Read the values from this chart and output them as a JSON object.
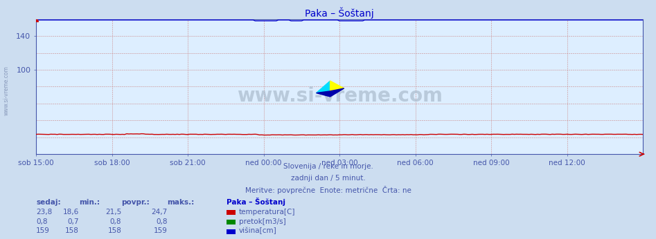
{
  "title": "Paka – Šoštanj",
  "title_color": "#0000cc",
  "bg_color": "#ccddf0",
  "plot_bg_color": "#ddeeff",
  "n_points": 289,
  "ylim": [
    0,
    160
  ],
  "yticks": [
    100,
    140
  ],
  "yticklabels": [
    "100",
    "140"
  ],
  "ylabel_color": "#4455aa",
  "xticklabels": [
    "sob 15:00",
    "sob 18:00",
    "sob 21:00",
    "ned 00:00",
    "ned 03:00",
    "ned 06:00",
    "ned 09:00",
    "ned 12:00"
  ],
  "xtick_color": "#4455aa",
  "temp_color": "#cc0000",
  "height_color": "#0000cc",
  "subtitle1": "Slovenija / reke in morje.",
  "subtitle2": "zadnji dan / 5 minut.",
  "subtitle3": "Meritve: povprečne  Enote: metrične  Črta: ne",
  "subtitle_color": "#4455aa",
  "watermark": "www.si-vreme.com",
  "watermark_color": "#aabbcc",
  "legend_title": "Paka – Šoštanj",
  "legend_color": "#0000cc",
  "table_header": [
    "sedaj:",
    "min.:",
    "povpr.:",
    "maks.:"
  ],
  "table_header_color": "#4455aa",
  "table_data": [
    [
      "23,8",
      "18,6",
      "21,5",
      "24,7"
    ],
    [
      "0,8",
      "0,7",
      "0,8",
      "0,8"
    ],
    [
      "159",
      "158",
      "158",
      "159"
    ]
  ],
  "table_data_color": "#4455aa",
  "series_labels": [
    "temperatura[C]",
    "pretok[m3/s]",
    "višina[cm]"
  ],
  "series_colors": [
    "#cc0000",
    "#008800",
    "#0000cc"
  ],
  "grid_color": "#cc8888",
  "spine_color": "#4455aa",
  "axis_arrow_color": "#cc0000",
  "left_watermark": "www.si-vreme.com",
  "left_watermark_color": "#8899bb"
}
